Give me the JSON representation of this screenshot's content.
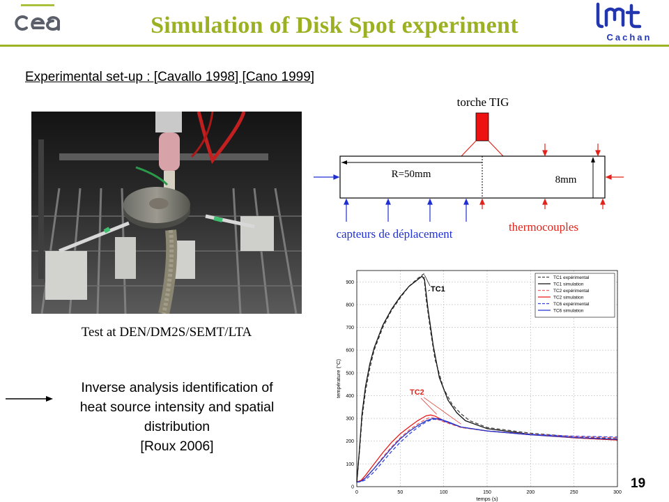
{
  "header": {
    "title": "Simulation of Disk Spot experiment",
    "logo_left": "cea",
    "logo_right_mark": "LMT",
    "logo_right_text": "Cachan"
  },
  "setup_text": "Experimental set-up : [Cavallo 1998] [Cano 1999]",
  "photo": {
    "caption": "Test at DEN/DM2S/SEMT/LTA"
  },
  "diagram": {
    "torch_label": "torche TIG",
    "radius_label": "R=50mm",
    "thickness_label": "8mm",
    "displacement_label": "capteurs de déplacement",
    "thermocouple_label": "thermocouples",
    "colors": {
      "torch": "#ee1111",
      "blue": "#1f2fd0",
      "red": "#e2231a"
    }
  },
  "inverse_text": [
    "Inverse analysis identification of",
    "heat source intensity and spatial",
    "distribution",
    "[Roux 2006]"
  ],
  "page_number": "19",
  "chart_data": {
    "type": "line",
    "xlabel": "temps (s)",
    "ylabel": "température (°C)",
    "xlim": [
      0,
      300
    ],
    "ylim": [
      0,
      950
    ],
    "xticks": [
      0,
      50,
      100,
      150,
      200,
      250,
      300
    ],
    "yticks": [
      0,
      100,
      200,
      300,
      400,
      500,
      600,
      700,
      800,
      900
    ],
    "grid": true,
    "legend_position": "top-right",
    "annotations": [
      "TC1",
      "TC2"
    ],
    "series": [
      {
        "name": "TC1 expérimental",
        "color": "#444444",
        "dash": "dashed",
        "x": [
          0,
          3,
          6,
          10,
          15,
          20,
          30,
          40,
          50,
          60,
          70,
          77,
          80,
          85,
          90,
          100,
          110,
          120,
          130,
          150,
          200,
          250,
          300
        ],
        "y": [
          20,
          150,
          300,
          420,
          520,
          600,
          700,
          775,
          830,
          880,
          915,
          935,
          820,
          680,
          560,
          430,
          360,
          320,
          290,
          260,
          235,
          220,
          210
        ]
      },
      {
        "name": "TC1 simulation",
        "color": "#111111",
        "dash": "solid",
        "x": [
          0,
          3,
          6,
          10,
          15,
          20,
          30,
          40,
          50,
          60,
          70,
          75,
          78,
          82,
          88,
          95,
          105,
          115,
          125,
          150,
          200,
          250,
          300
        ],
        "y": [
          20,
          160,
          320,
          440,
          540,
          610,
          710,
          780,
          835,
          880,
          910,
          925,
          910,
          780,
          620,
          480,
          380,
          325,
          290,
          255,
          230,
          215,
          205
        ]
      },
      {
        "name": "TC2 expérimental",
        "color": "#f06060",
        "dash": "dashed",
        "x": [
          0,
          5,
          10,
          20,
          30,
          40,
          50,
          60,
          70,
          80,
          85,
          90,
          100,
          120,
          150,
          200,
          250,
          300
        ],
        "y": [
          20,
          25,
          40,
          80,
          130,
          175,
          215,
          248,
          275,
          298,
          305,
          300,
          285,
          260,
          245,
          230,
          220,
          215
        ]
      },
      {
        "name": "TC2 simulation",
        "color": "#e81818",
        "dash": "solid",
        "x": [
          0,
          5,
          10,
          20,
          30,
          40,
          50,
          60,
          70,
          80,
          85,
          90,
          100,
          120,
          150,
          200,
          250,
          300
        ],
        "y": [
          20,
          28,
          50,
          100,
          150,
          195,
          232,
          262,
          290,
          312,
          315,
          310,
          290,
          262,
          245,
          228,
          215,
          205
        ]
      },
      {
        "name": "TC6 expérimental",
        "color": "#3344dd",
        "dash": "dashed",
        "x": [
          0,
          5,
          10,
          20,
          30,
          40,
          50,
          60,
          70,
          80,
          88,
          95,
          105,
          120,
          150,
          200,
          250,
          300
        ],
        "y": [
          20,
          22,
          30,
          65,
          110,
          155,
          195,
          230,
          260,
          285,
          296,
          295,
          282,
          262,
          245,
          230,
          222,
          218
        ]
      },
      {
        "name": "TC6 simulation",
        "color": "#2233cc",
        "dash": "solid",
        "x": [
          0,
          5,
          10,
          20,
          30,
          40,
          50,
          60,
          70,
          80,
          88,
          95,
          105,
          120,
          150,
          200,
          250,
          300
        ],
        "y": [
          20,
          24,
          38,
          80,
          125,
          170,
          210,
          242,
          268,
          290,
          300,
          298,
          285,
          262,
          245,
          228,
          216,
          208
        ]
      }
    ]
  }
}
